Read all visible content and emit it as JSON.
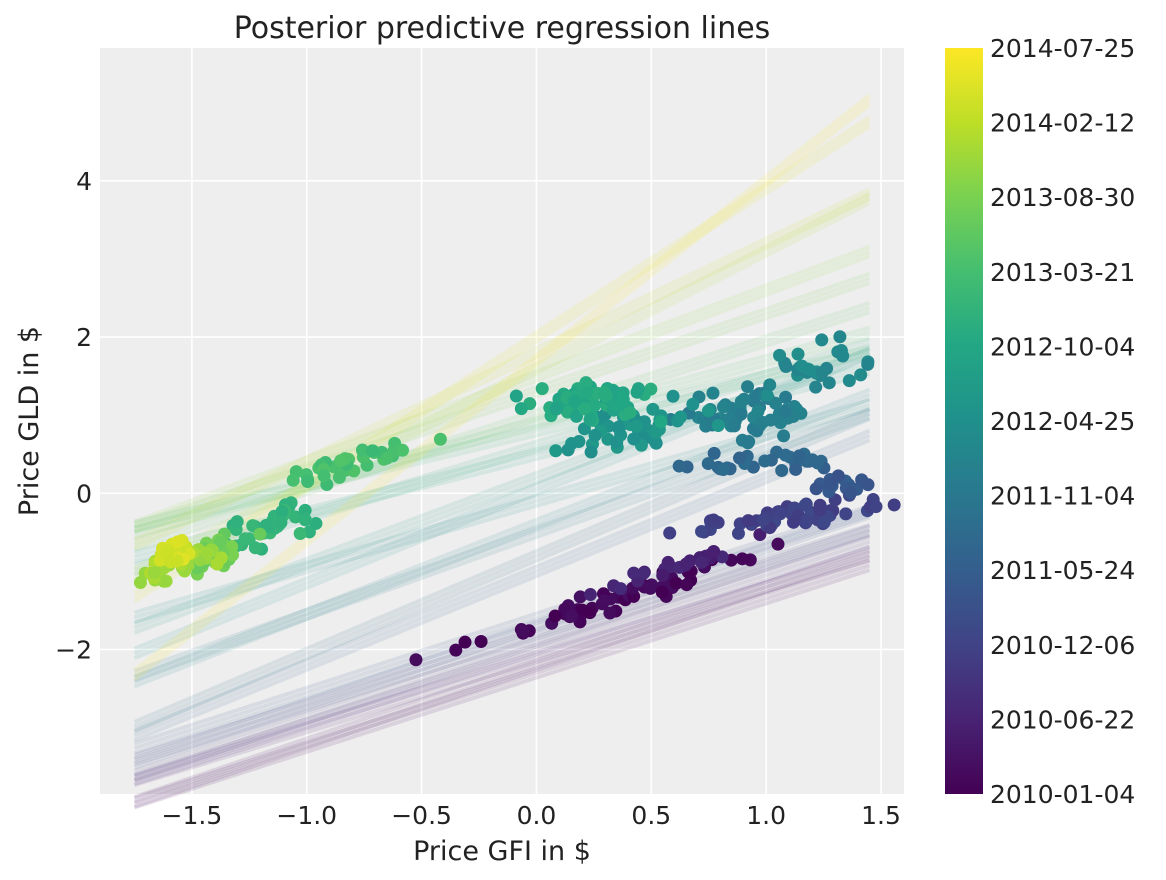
{
  "chart_data": {
    "type": "scatter",
    "title": "Posterior predictive regression lines",
    "xlabel": "Price GFI in $",
    "ylabel": "Price GLD in $",
    "xlim": [
      -1.9,
      1.6
    ],
    "ylim": [
      -3.85,
      5.7
    ],
    "x_ticks": [
      -1.5,
      -1.0,
      -0.5,
      0.0,
      0.5,
      1.0,
      1.5
    ],
    "x_tick_labels": [
      "−1.5",
      "−1.0",
      "−0.5",
      "0.0",
      "0.5",
      "1.0",
      "1.5"
    ],
    "y_ticks": [
      -2,
      0,
      2,
      4
    ],
    "y_tick_labels": [
      "−2",
      "0",
      "2",
      "4"
    ],
    "grid": true,
    "background": "#eeeeee",
    "colormap": "viridis",
    "colorbar": {
      "labels": [
        "2010-01-04",
        "2010-06-22",
        "2010-12-06",
        "2011-05-24",
        "2011-11-04",
        "2012-04-25",
        "2012-10-04",
        "2013-03-21",
        "2013-08-30",
        "2014-02-12",
        "2014-07-25"
      ],
      "min_date": "2010-01-04",
      "max_date": "2014-07-25"
    },
    "regression_lines": {
      "x_range": [
        -1.75,
        1.45
      ],
      "lines": [
        {
          "t": 0.0,
          "intercept": -2.3,
          "slope": 0.95
        },
        {
          "t": 0.04,
          "intercept": -2.2,
          "slope": 1.0
        },
        {
          "t": 0.08,
          "intercept": -2.1,
          "slope": 0.9
        },
        {
          "t": 0.12,
          "intercept": -2.0,
          "slope": 0.95
        },
        {
          "t": 0.16,
          "intercept": -1.9,
          "slope": 0.98
        },
        {
          "t": 0.2,
          "intercept": -1.8,
          "slope": 0.92
        },
        {
          "t": 0.24,
          "intercept": -1.7,
          "slope": 1.0
        },
        {
          "t": 0.28,
          "intercept": -1.6,
          "slope": 0.95
        },
        {
          "t": 0.32,
          "intercept": -1.0,
          "slope": 1.2
        },
        {
          "t": 0.36,
          "intercept": -0.8,
          "slope": 1.25
        },
        {
          "t": 0.4,
          "intercept": -0.5,
          "slope": 1.05
        },
        {
          "t": 0.44,
          "intercept": -0.4,
          "slope": 1.15
        },
        {
          "t": 0.48,
          "intercept": -0.1,
          "slope": 0.85
        },
        {
          "t": 0.52,
          "intercept": 0.05,
          "slope": 1.2
        },
        {
          "t": 0.56,
          "intercept": 0.2,
          "slope": 1.1
        },
        {
          "t": 0.6,
          "intercept": 0.5,
          "slope": 0.75
        },
        {
          "t": 0.64,
          "intercept": 0.6,
          "slope": 0.9
        },
        {
          "t": 0.68,
          "intercept": 0.8,
          "slope": 0.7
        },
        {
          "t": 0.72,
          "intercept": 0.9,
          "slope": 0.8
        },
        {
          "t": 0.76,
          "intercept": 1.0,
          "slope": 0.95
        },
        {
          "t": 0.8,
          "intercept": 1.3,
          "slope": 1.0
        },
        {
          "t": 0.84,
          "intercept": 1.5,
          "slope": 1.1
        },
        {
          "t": 0.88,
          "intercept": 1.6,
          "slope": 1.5
        },
        {
          "t": 0.92,
          "intercept": 1.8,
          "slope": 1.4
        },
        {
          "t": 0.96,
          "intercept": 2.0,
          "slope": 1.9
        },
        {
          "t": 1.0,
          "intercept": 1.7,
          "slope": 2.3
        }
      ]
    },
    "clusters": [
      {
        "t": 0.02,
        "cx": 0.3,
        "cy": -1.4,
        "sx": 0.55,
        "slope": 0.9,
        "sy": 0.12,
        "n": 60
      },
      {
        "t": 0.1,
        "cx": 0.65,
        "cy": -0.9,
        "sx": 0.25,
        "slope": 0.95,
        "sy": 0.1,
        "n": 25
      },
      {
        "t": 0.2,
        "cx": 1.1,
        "cy": -0.3,
        "sx": 0.33,
        "slope": 0.4,
        "sy": 0.12,
        "n": 55
      },
      {
        "t": 0.28,
        "cx": 1.35,
        "cy": 0.1,
        "sx": 0.12,
        "slope": 0.2,
        "sy": 0.12,
        "n": 15
      },
      {
        "t": 0.33,
        "cx": 0.95,
        "cy": 0.4,
        "sx": 0.28,
        "slope": 0.1,
        "sy": 0.15,
        "n": 30
      },
      {
        "t": 0.43,
        "cx": 0.9,
        "cy": 1.0,
        "sx": 0.22,
        "slope": 0.4,
        "sy": 0.28,
        "n": 60
      },
      {
        "t": 0.47,
        "cx": 1.2,
        "cy": 1.6,
        "sx": 0.18,
        "slope": 0.3,
        "sy": 0.25,
        "n": 30
      },
      {
        "t": 0.52,
        "cx": 0.4,
        "cy": 0.85,
        "sx": 0.25,
        "slope": 0.5,
        "sy": 0.22,
        "n": 50
      },
      {
        "t": 0.6,
        "cx": 0.25,
        "cy": 1.2,
        "sx": 0.22,
        "slope": 0.3,
        "sy": 0.25,
        "n": 60
      },
      {
        "t": 0.65,
        "cx": -1.15,
        "cy": -0.4,
        "sx": 0.22,
        "slope": 1.0,
        "sy": 0.2,
        "n": 40
      },
      {
        "t": 0.7,
        "cx": -0.8,
        "cy": 0.4,
        "sx": 0.25,
        "slope": 0.8,
        "sy": 0.15,
        "n": 35
      },
      {
        "t": 0.78,
        "cx": -1.4,
        "cy": -0.8,
        "sx": 0.15,
        "slope": 0.9,
        "sy": 0.2,
        "n": 30
      },
      {
        "t": 0.86,
        "cx": -1.55,
        "cy": -0.85,
        "sx": 0.12,
        "slope": 0.8,
        "sy": 0.18,
        "n": 35
      },
      {
        "t": 0.94,
        "cx": -1.58,
        "cy": -0.75,
        "sx": 0.06,
        "slope": 0.6,
        "sy": 0.12,
        "n": 30
      }
    ]
  }
}
